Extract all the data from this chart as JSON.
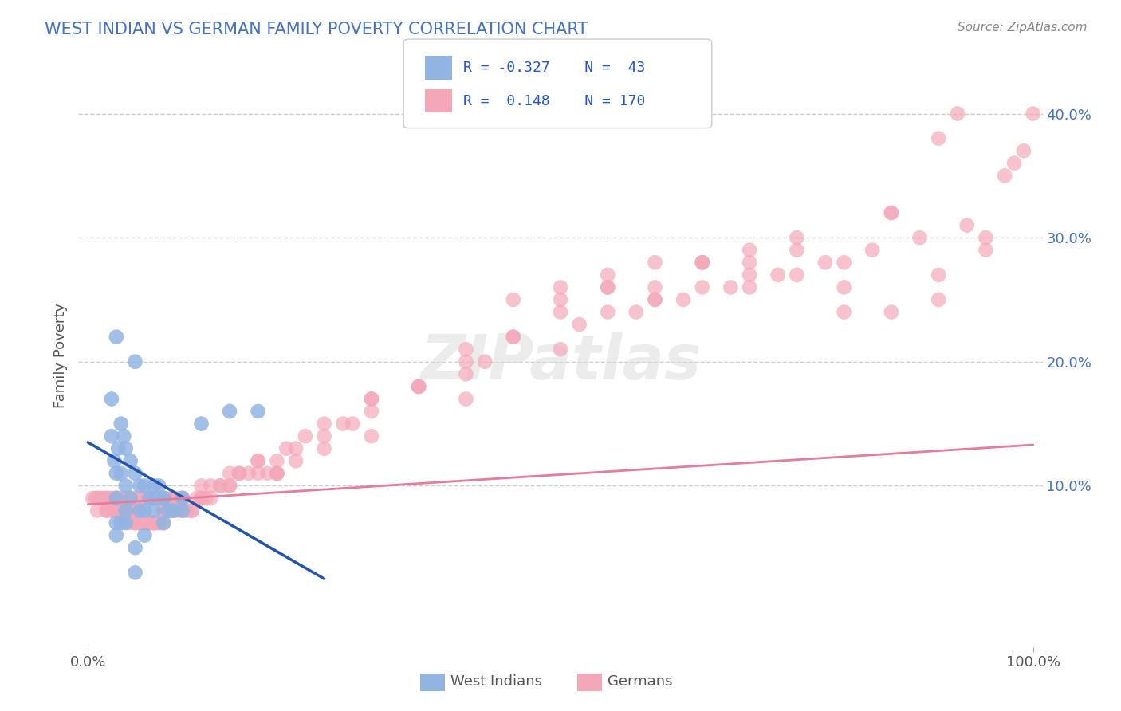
{
  "title": "WEST INDIAN VS GERMAN FAMILY POVERTY CORRELATION CHART",
  "source": "Source: ZipAtlas.com",
  "xlabel": "",
  "ylabel": "Family Poverty",
  "xlim": [
    0,
    100
  ],
  "ylim": [
    -3,
    44
  ],
  "ytick_right_labels": [
    "10.0%",
    "20.0%",
    "30.0%",
    "40.0%"
  ],
  "ytick_right_values": [
    10,
    20,
    30,
    40
  ],
  "grid_color": "#cccccc",
  "background_color": "#ffffff",
  "title_color": "#4472c4",
  "west_indian_color": "#92b4e3",
  "german_color": "#f4a7b9",
  "west_indian_line_color": "#2255aa",
  "german_line_color": "#e87a9a",
  "watermark_text": "ZIPatlas",
  "west_indians_label": "West Indians",
  "germans_label": "Germans",
  "wi_line_x0": 0,
  "wi_line_x1": 25,
  "wi_line_y0": 13.5,
  "wi_line_y1": 2.5,
  "g_line_x0": 0,
  "g_line_x1": 100,
  "g_line_y0": 8.5,
  "g_line_y1": 13.3,
  "west_indian_x": [
    2.5,
    2.8,
    3.0,
    3.2,
    3.5,
    3.8,
    4.0,
    4.5,
    5.0,
    5.5,
    6.0,
    6.5,
    7.0,
    7.5,
    8.0,
    8.5,
    9.0,
    10.0,
    12.0,
    15.0,
    18.0,
    3.0,
    3.5,
    4.0,
    5.0,
    2.5,
    3.0,
    3.5,
    4.0,
    4.5,
    5.5,
    6.0,
    7.0,
    8.0,
    3.0,
    4.0,
    5.0,
    6.0,
    7.0,
    8.0,
    10.0,
    3.0,
    5.0
  ],
  "west_indian_y": [
    14,
    12,
    11,
    13,
    15,
    14,
    13,
    12,
    11,
    10,
    10,
    9,
    9,
    10,
    9,
    8,
    8,
    8,
    15,
    16,
    16,
    7,
    7,
    8,
    20,
    17,
    9,
    11,
    10,
    9,
    8,
    8,
    10,
    9,
    6,
    7,
    5,
    6,
    8,
    7,
    9,
    22,
    3
  ],
  "german_x": [
    0.5,
    1.0,
    1.5,
    2.0,
    2.5,
    3.0,
    3.5,
    4.0,
    4.5,
    5.0,
    5.5,
    6.0,
    6.5,
    7.0,
    7.5,
    8.0,
    8.5,
    9.0,
    9.5,
    10.0,
    10.5,
    11.0,
    11.5,
    12.0,
    12.5,
    13.0,
    14.0,
    15.0,
    16.0,
    17.0,
    18.0,
    19.0,
    20.0,
    21.0,
    22.0,
    23.0,
    25.0,
    27.0,
    30.0,
    35.0,
    40.0,
    45.0,
    50.0,
    55.0,
    60.0,
    65.0,
    70.0,
    75.0,
    80.0,
    85.0,
    90.0,
    95.0,
    1.0,
    2.0,
    3.0,
    4.0,
    5.0,
    6.0,
    7.0,
    8.0,
    9.0,
    10.0,
    12.0,
    14.0,
    16.0,
    18.0,
    20.0,
    25.0,
    30.0,
    35.0,
    40.0,
    45.0,
    50.0,
    55.0,
    60.0,
    65.0,
    70.0,
    3.0,
    5.0,
    7.0,
    9.0,
    11.0,
    13.0,
    2.0,
    4.0,
    6.0,
    8.0,
    10.0,
    15.0,
    20.0,
    25.0,
    30.0,
    40.0,
    50.0,
    60.0,
    70.0,
    80.0,
    90.0,
    95.0,
    3.5,
    5.5,
    7.5,
    4.5,
    6.5,
    8.5,
    2.5,
    3.5,
    4.5,
    5.5,
    6.5,
    12.0,
    15.0,
    18.0,
    22.0,
    28.0,
    35.0,
    42.0,
    55.0,
    65.0,
    75.0,
    85.0,
    90.0,
    92.0,
    3.0,
    5.0,
    7.0,
    9.0,
    55.0,
    65.0,
    75.0,
    85.0,
    8.0,
    10.0,
    12.0,
    6.0,
    4.0,
    20.0,
    30.0,
    40.0,
    50.0,
    60.0,
    70.0,
    80.0,
    45.0,
    52.0,
    58.0,
    63.0,
    68.0,
    73.0,
    78.0,
    83.0,
    88.0,
    93.0,
    97.0,
    98.0,
    99.0,
    100.0,
    0.8,
    1.2,
    1.8,
    2.2,
    2.8,
    3.2,
    3.8,
    4.2,
    4.8,
    5.2,
    5.8,
    6.2,
    6.8,
    7.2,
    7.8,
    8.2,
    8.8,
    9.2,
    9.8
  ],
  "german_y": [
    9,
    8,
    9,
    8,
    9,
    9,
    8,
    8,
    8,
    8,
    7,
    7,
    7,
    7,
    7,
    8,
    8,
    9,
    8,
    9,
    8,
    8,
    9,
    9,
    9,
    10,
    10,
    11,
    11,
    11,
    12,
    11,
    11,
    13,
    13,
    14,
    15,
    15,
    17,
    18,
    19,
    22,
    25,
    27,
    25,
    26,
    28,
    27,
    24,
    24,
    27,
    29,
    9,
    8,
    9,
    8,
    8,
    7,
    7,
    7,
    8,
    9,
    9,
    10,
    11,
    12,
    11,
    14,
    17,
    18,
    21,
    25,
    24,
    26,
    28,
    28,
    29,
    8,
    7,
    7,
    8,
    8,
    9,
    9,
    8,
    7,
    8,
    8,
    10,
    11,
    13,
    16,
    20,
    26,
    25,
    26,
    26,
    25,
    30,
    8,
    7,
    7,
    8,
    7,
    8,
    8,
    8,
    7,
    7,
    7,
    9,
    10,
    11,
    12,
    15,
    18,
    20,
    24,
    28,
    30,
    32,
    38,
    40,
    8,
    7,
    7,
    8,
    26,
    28,
    29,
    32,
    8,
    9,
    10,
    7,
    8,
    12,
    14,
    17,
    21,
    26,
    27,
    28,
    22,
    23,
    24,
    25,
    26,
    27,
    28,
    29,
    30,
    31,
    35,
    36,
    37,
    40,
    9,
    9,
    9,
    9,
    9,
    9,
    9,
    9,
    9,
    9,
    9,
    9,
    9,
    9,
    9,
    9,
    9,
    9,
    9
  ]
}
